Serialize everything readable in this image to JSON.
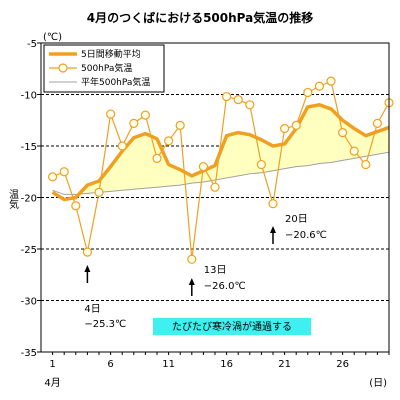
{
  "chart_data": {
    "type": "line",
    "title": "4月のつくばにおける500hPa気温の推移",
    "ylabel": "温気",
    "yunit": "(℃)",
    "xunit": "(日)",
    "month_label": "4月",
    "ylim": [
      -35,
      -5
    ],
    "yticks": [
      -5,
      -10,
      -15,
      -20,
      -25,
      -30,
      -35
    ],
    "xlim": [
      0,
      30
    ],
    "xticks": [
      1,
      6,
      11,
      16,
      21,
      26
    ],
    "grid": "dashed horizontal",
    "legend_position": "top-left",
    "days": [
      1,
      2,
      3,
      4,
      5,
      6,
      7,
      8,
      9,
      10,
      11,
      12,
      13,
      14,
      15,
      16,
      17,
      18,
      19,
      20,
      21,
      22,
      23,
      24,
      25,
      26,
      27,
      28,
      29,
      30
    ],
    "series": [
      {
        "name": "5日間移動平均",
        "color": "#f0a020",
        "values": [
          -19.5,
          -20.2,
          -20.0,
          -18.8,
          -18.4,
          -17.0,
          -15.5,
          -14.2,
          -13.8,
          -14.3,
          -16.8,
          -17.3,
          -17.9,
          -17.4,
          -16.9,
          -14.0,
          -13.7,
          -13.9,
          -14.4,
          -15.0,
          -14.8,
          -13.3,
          -11.2,
          -11.0,
          -11.4,
          -12.5,
          -13.3,
          -14.0,
          -13.6,
          -13.2
        ]
      },
      {
        "name": "500hPa気温",
        "color": "#f0a020",
        "values": [
          -18.0,
          -17.5,
          -20.8,
          -25.3,
          -19.5,
          -11.9,
          -15.0,
          -12.8,
          -12.0,
          -16.2,
          -14.5,
          -13.0,
          -26.0,
          -17.0,
          -19.0,
          -10.2,
          -10.5,
          -11.0,
          -16.8,
          -20.6,
          -13.3,
          -13.0,
          -9.8,
          -9.2,
          -8.7,
          -13.7,
          -15.5,
          -16.8,
          -12.8,
          -10.8
        ]
      },
      {
        "name": "平年500hPa気温",
        "color": "#a0a0a0",
        "values": [
          -19.3,
          -19.7,
          -19.7,
          -19.6,
          -19.5,
          -19.4,
          -19.3,
          -19.2,
          -19.1,
          -19.0,
          -18.9,
          -18.8,
          -18.6,
          -18.5,
          -18.3,
          -18.1,
          -17.9,
          -17.7,
          -17.6,
          -17.4,
          -17.2,
          -17.0,
          -16.9,
          -16.7,
          -16.6,
          -16.4,
          -16.2,
          -16.0,
          -15.8,
          -15.6
        ]
      }
    ],
    "fill_color": "#ffffc0",
    "annotations": [
      {
        "day": 4,
        "label_day": "4日",
        "label_value": "−25.3℃"
      },
      {
        "day": 13,
        "label_day": "13日",
        "label_value": "−26.0℃"
      },
      {
        "day": 20,
        "label_day": "20日",
        "label_value": "−20.6℃"
      }
    ],
    "banner_text": "たびたび寒冷渦が通過する",
    "banner_color": "#40f0f0"
  }
}
